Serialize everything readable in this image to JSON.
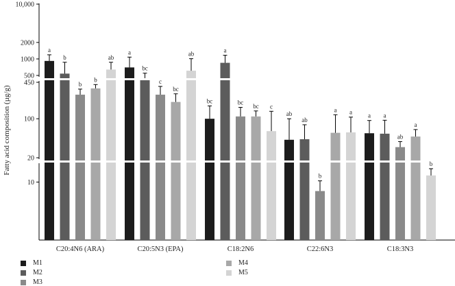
{
  "chart_data": {
    "type": "bar",
    "title": "",
    "xlabel": "",
    "ylabel": "Fatty acid composition (µg/g)",
    "y_scale": "log, broken axis",
    "y_ticks": [
      "10,000",
      "2000",
      "1000",
      "500",
      "450",
      "100",
      "20",
      "10"
    ],
    "categories": [
      "C20:4N6 (ARA)",
      "C20:5N3 (EPA)",
      "C18:2N6",
      "C22:6N3",
      "C18:3N3"
    ],
    "series": [
      {
        "name": "M1",
        "color": "#1c1c1c",
        "values": [
          920,
          700,
          100,
          42,
          55
        ],
        "errors": [
          270,
          380,
          70,
          58,
          38
        ],
        "letters": [
          "a",
          "a",
          "bc",
          "ab",
          "a"
        ]
      },
      {
        "name": "M2",
        "color": "#5c5c5c",
        "values": [
          540,
          460,
          850,
          43,
          54
        ],
        "errors": [
          330,
          90,
          320,
          35,
          40
        ],
        "letters": [
          "b",
          "bc",
          "a",
          "ab",
          "a"
        ]
      },
      {
        "name": "M3",
        "color": "#8a8a8a",
        "values": [
          270,
          270,
          110,
          7,
          31
        ],
        "errors": [
          70,
          110,
          50,
          3.5,
          8
        ],
        "letters": [
          "b",
          "c",
          "bc",
          "b",
          "ab"
        ]
      },
      {
        "name": "M4",
        "color": "#a8a8a8",
        "values": [
          350,
          200,
          110,
          56,
          48
        ],
        "errors": [
          60,
          80,
          28,
          62,
          16
        ],
        "letters": [
          "b",
          "bc",
          "bc",
          "a",
          "a"
        ]
      },
      {
        "name": "M5",
        "color": "#d4d4d4",
        "values": [
          640,
          610,
          60,
          57,
          13
        ],
        "errors": [
          230,
          400,
          76,
          50,
          4
        ],
        "letters": [
          "ab",
          "ab",
          "c",
          "a",
          "b"
        ]
      }
    ],
    "legend_position": "bottom-left",
    "grid": false
  }
}
